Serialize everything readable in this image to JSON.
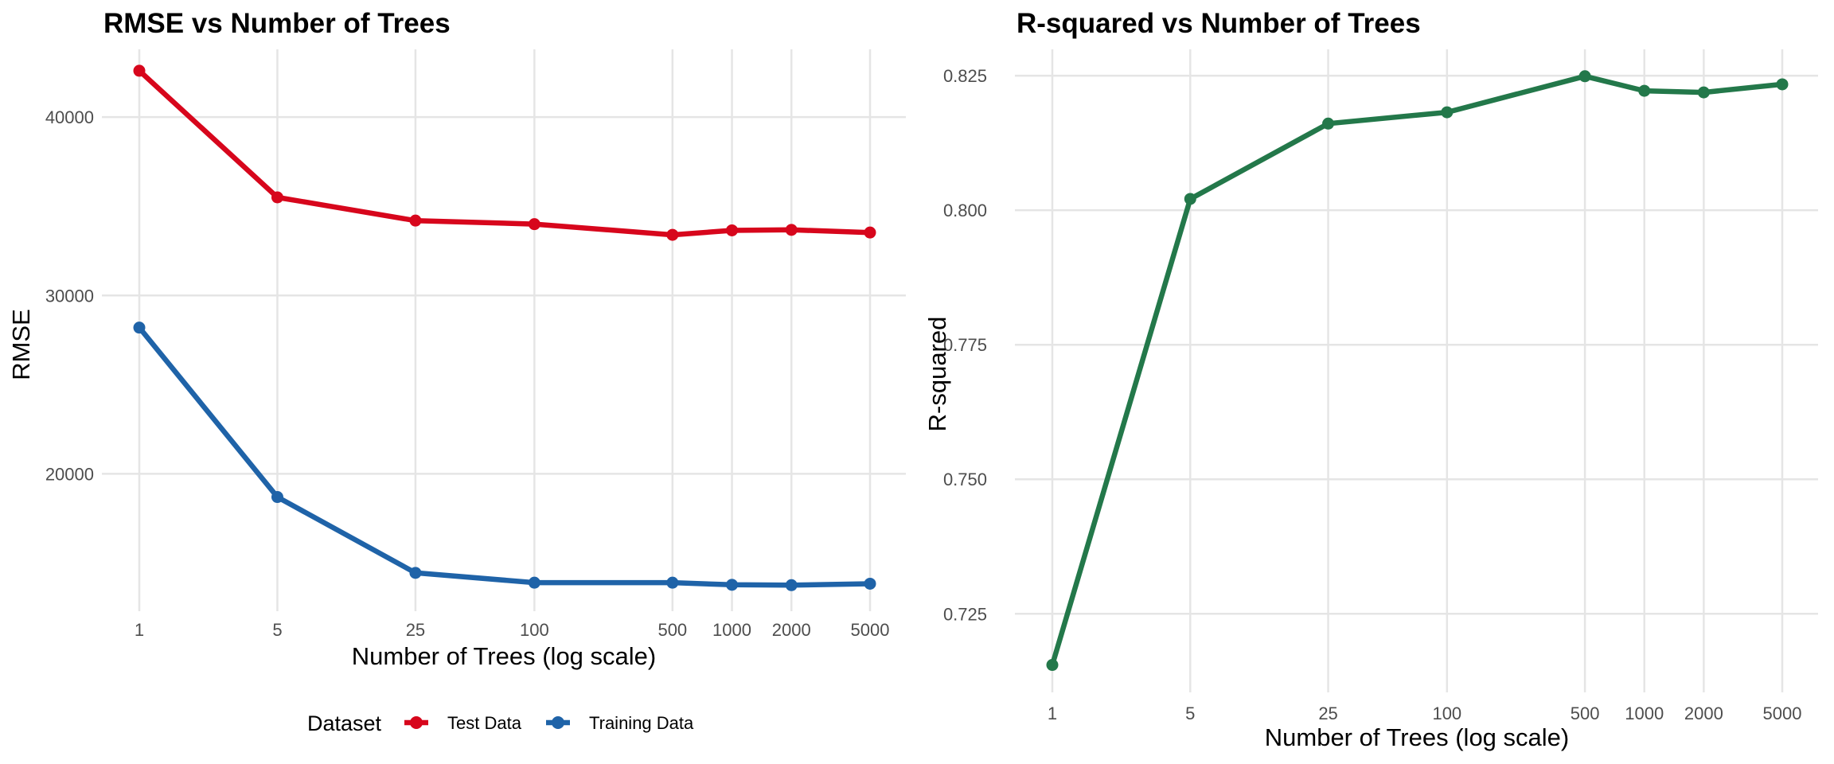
{
  "chart_data": [
    {
      "type": "line",
      "title": "RMSE vs Number of Trees",
      "xlabel": "Number of Trees (log scale)",
      "ylabel": "RMSE",
      "x_scale": "log",
      "x": [
        1,
        5,
        25,
        100,
        500,
        1000,
        2000,
        5000
      ],
      "x_tick_labels": [
        "1",
        "5",
        "25",
        "100",
        "500",
        "1000",
        "2000",
        "5000"
      ],
      "y_ticks": [
        20000,
        30000,
        40000
      ],
      "y_tick_labels": [
        "20000",
        "30000",
        "40000"
      ],
      "ylim": [
        12300,
        43800
      ],
      "grid": true,
      "legend": {
        "title": "Dataset",
        "position": "bottom",
        "entries": [
          "Test Data",
          "Training Data"
        ]
      },
      "series": [
        {
          "name": "Test Data",
          "color": "#d7061c",
          "values": [
            42600,
            35500,
            34200,
            34000,
            33400,
            33650,
            33680,
            33530
          ]
        },
        {
          "name": "Training Data",
          "color": "#1f63a8",
          "values": [
            28200,
            18700,
            14450,
            13900,
            13900,
            13780,
            13760,
            13840
          ]
        }
      ]
    },
    {
      "type": "line",
      "title": "R-squared vs Number of Trees",
      "xlabel": "Number of Trees (log scale)",
      "ylabel": "R-squared",
      "x_scale": "log",
      "x": [
        1,
        5,
        25,
        100,
        500,
        1000,
        2000,
        5000
      ],
      "x_tick_labels": [
        "1",
        "5",
        "25",
        "100",
        "500",
        "1000",
        "2000",
        "5000"
      ],
      "y_ticks": [
        0.725,
        0.75,
        0.775,
        0.8,
        0.825
      ],
      "y_tick_labels": [
        "0.725",
        "0.750",
        "0.775",
        "0.800",
        "0.825"
      ],
      "ylim": [
        0.7104,
        0.8299
      ],
      "grid": true,
      "series": [
        {
          "name": "",
          "color": "#23784a",
          "values": [
            0.7155,
            0.8021,
            0.8161,
            0.8182,
            0.8249,
            0.8222,
            0.8219,
            0.8234
          ]
        }
      ]
    }
  ]
}
